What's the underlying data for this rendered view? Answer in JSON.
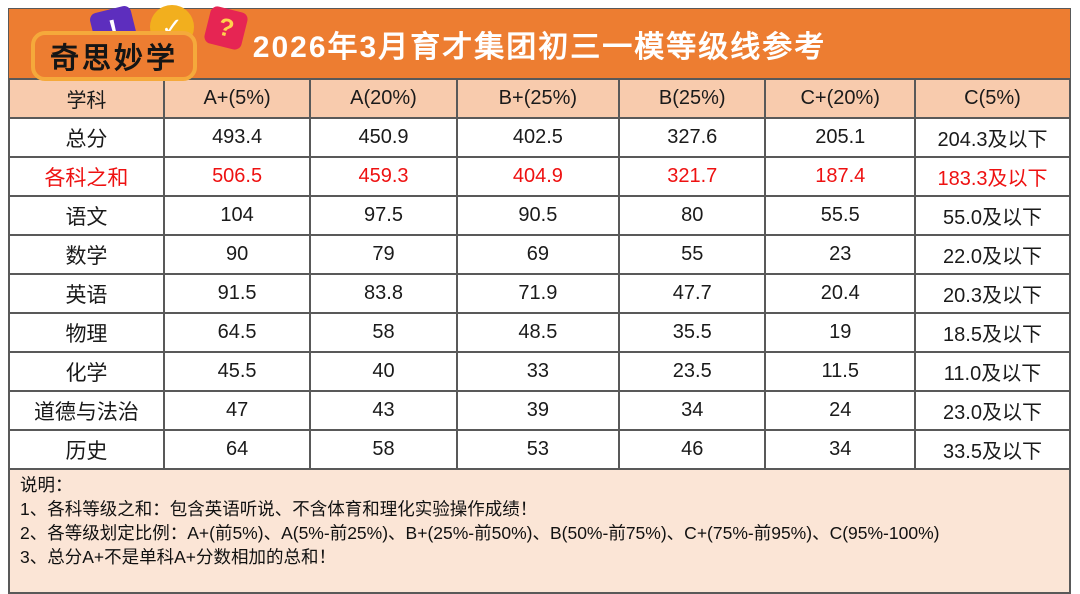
{
  "logo": {
    "text": "奇思妙学",
    "badges": {
      "exclamation": "!",
      "check": "✓",
      "question": "?"
    }
  },
  "header": {
    "title": "2026年3月育才集团初三一模等级线参考"
  },
  "table": {
    "columns": [
      "学科",
      "A+(5%)",
      "A(20%)",
      "B+(25%)",
      "B(25%)",
      "C+(20%)",
      "C(5%)"
    ],
    "rows": [
      {
        "label": "总分",
        "cells": [
          "493.4",
          "450.9",
          "402.5",
          "327.6",
          "205.1",
          "204.3及以下"
        ],
        "highlight": false
      },
      {
        "label": "各科之和",
        "cells": [
          "506.5",
          "459.3",
          "404.9",
          "321.7",
          "187.4",
          "183.3及以下"
        ],
        "highlight": true
      },
      {
        "label": "语文",
        "cells": [
          "104",
          "97.5",
          "90.5",
          "80",
          "55.5",
          "55.0及以下"
        ],
        "highlight": false
      },
      {
        "label": "数学",
        "cells": [
          "90",
          "79",
          "69",
          "55",
          "23",
          "22.0及以下"
        ],
        "highlight": false
      },
      {
        "label": "英语",
        "cells": [
          "91.5",
          "83.8",
          "71.9",
          "47.7",
          "20.4",
          "20.3及以下"
        ],
        "highlight": false
      },
      {
        "label": "物理",
        "cells": [
          "64.5",
          "58",
          "48.5",
          "35.5",
          "19",
          "18.5及以下"
        ],
        "highlight": false
      },
      {
        "label": "化学",
        "cells": [
          "45.5",
          "40",
          "33",
          "23.5",
          "11.5",
          "11.0及以下"
        ],
        "highlight": false
      },
      {
        "label": "道德与法治",
        "cells": [
          "47",
          "43",
          "39",
          "34",
          "24",
          "23.0及以下"
        ],
        "highlight": false
      },
      {
        "label": "历史",
        "cells": [
          "64",
          "58",
          "53",
          "46",
          "34",
          "33.5及以下"
        ],
        "highlight": false
      }
    ]
  },
  "notes": {
    "heading": "说明：",
    "items": [
      "1、各科等级之和：包含英语听说、不含体育和理化实验操作成绩！",
      "2、各等级划定比例：A+(前5%)、A(5%-前25%)、B+(25%-前50%)、B(50%-前75%)、C+(75%-前95%)、C(95%-100%)",
      "3、总分A+不是单科A+分数相加的总和！"
    ]
  },
  "colors": {
    "accent_orange": "#ED7D31",
    "header_row_bg": "#F8CBAD",
    "notes_bg": "#FBE5D6",
    "highlight_red": "#EE1111",
    "grid_border": "#595959",
    "logo_border_yellow": "#F5A93B",
    "badge_purple": "#5D2EBE",
    "badge_yellow": "#F2AF1E",
    "badge_red": "#E62553"
  }
}
